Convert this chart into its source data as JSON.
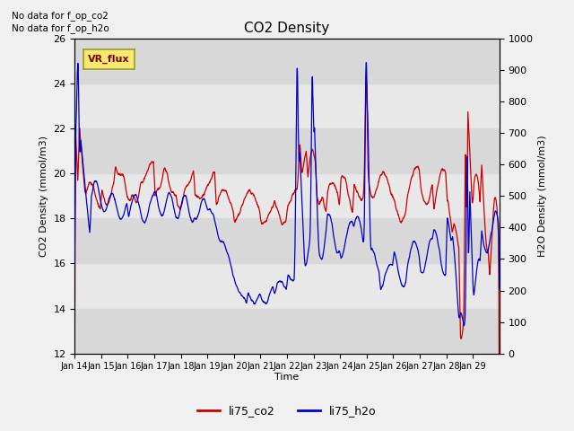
{
  "title": "CO2 Density",
  "xlabel": "Time",
  "ylabel_left": "CO2 Density (mmol/m3)",
  "ylabel_right": "H2O Density (mmol/m3)",
  "ylim_left": [
    12,
    26
  ],
  "ylim_right": [
    0,
    1000
  ],
  "yticks_left": [
    12,
    14,
    16,
    18,
    20,
    22,
    24,
    26
  ],
  "yticks_right": [
    0,
    100,
    200,
    300,
    400,
    500,
    600,
    700,
    800,
    900,
    1000
  ],
  "no_data_text": [
    "No data for f_op_co2",
    "No data for f_op_h2o"
  ],
  "vr_flux_label": "VR_flux",
  "legend_entries": [
    "li75_co2",
    "li75_h2o"
  ],
  "line_colors": [
    "#cc0000",
    "#0000cc"
  ],
  "fig_facecolor": "#f0f0f0",
  "plot_bg_light": "#e8e8e8",
  "plot_bg_dark": "#d8d8d8",
  "xtick_labels": [
    "Jan 14",
    "Jan 15",
    "Jan 16",
    "Jan 17",
    "Jan 18",
    "Jan 19",
    "Jan 20",
    "Jan 21",
    "Jan 22",
    "Jan 23",
    "Jan 24",
    "Jan 25",
    "Jan 26",
    "Jan 27",
    "Jan 28",
    "Jan 29"
  ]
}
